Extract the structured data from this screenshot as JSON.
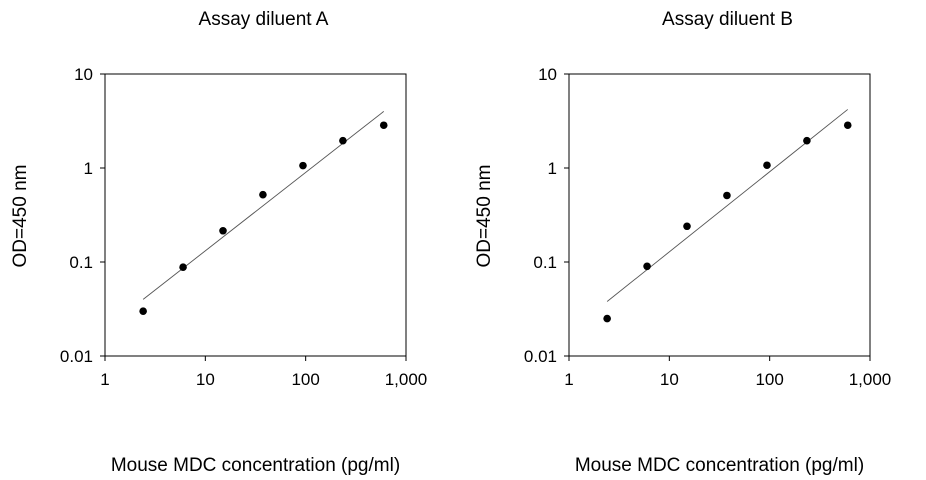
{
  "chart_data": [
    {
      "type": "scatter",
      "title": "Assay diluent A",
      "xlabel": "Mouse MDC concentration (pg/ml)",
      "ylabel": "OD=450 nm",
      "xscale": "log",
      "yscale": "log",
      "xlim": [
        1,
        1000
      ],
      "ylim": [
        0.01,
        10
      ],
      "xticks": [
        "1",
        "10",
        "100",
        "1,000"
      ],
      "yticks": [
        "0.01",
        "0.1",
        "1",
        "10"
      ],
      "series": [
        {
          "x": [
            2.4,
            6,
            15,
            37.5,
            94,
            235,
            600
          ],
          "y": [
            0.03,
            0.088,
            0.215,
            0.52,
            1.06,
            1.95,
            2.85
          ]
        }
      ],
      "fit_line": {
        "x": [
          2.4,
          600
        ],
        "y": [
          0.04,
          4.0
        ]
      },
      "grid": false
    },
    {
      "type": "scatter",
      "title": "Assay diluent B",
      "xlabel": "Mouse MDC concentration (pg/ml)",
      "ylabel": "OD=450 nm",
      "xscale": "log",
      "yscale": "log",
      "xlim": [
        1,
        1000
      ],
      "ylim": [
        0.01,
        10
      ],
      "xticks": [
        "1",
        "10",
        "100",
        "1,000"
      ],
      "yticks": [
        "0.01",
        "0.1",
        "1",
        "10"
      ],
      "series": [
        {
          "x": [
            2.4,
            6,
            15,
            37.5,
            94,
            235,
            600
          ],
          "y": [
            0.025,
            0.09,
            0.24,
            0.51,
            1.07,
            1.95,
            2.85
          ]
        }
      ],
      "fit_line": {
        "x": [
          2.4,
          600
        ],
        "y": [
          0.038,
          4.2
        ]
      },
      "grid": false
    }
  ]
}
